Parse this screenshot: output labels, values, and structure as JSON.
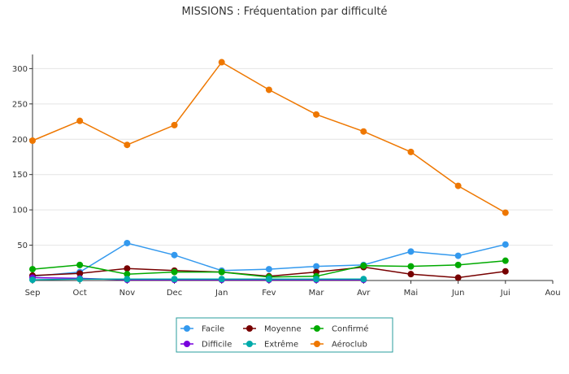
{
  "chart_data": {
    "type": "line",
    "title": "MISSIONS : Fréquentation par difficulté",
    "xlabel": "",
    "ylabel": "",
    "categories": [
      "Sep",
      "Oct",
      "Nov",
      "Dec",
      "Jan",
      "Fev",
      "Mar",
      "Avr",
      "Mai",
      "Jun",
      "Jui",
      "Aou"
    ],
    "ylim": [
      0,
      320
    ],
    "yticks": [
      50,
      100,
      150,
      200,
      250,
      300
    ],
    "grid": true,
    "legend_position": "bottom",
    "series": [
      {
        "name": "Facile",
        "color": "#3399ee",
        "values": [
          6,
          12,
          53,
          36,
          14,
          16,
          20,
          22,
          41,
          35,
          51,
          null
        ]
      },
      {
        "name": "Moyenne",
        "color": "#770000",
        "values": [
          7,
          10,
          17,
          14,
          12,
          6,
          12,
          19,
          9,
          4,
          13,
          null
        ]
      },
      {
        "name": "Confirmé",
        "color": "#00aa00",
        "values": [
          16,
          22,
          9,
          12,
          12,
          5,
          6,
          21,
          20,
          22,
          28,
          null
        ]
      },
      {
        "name": "Difficile",
        "color": "#7700dd",
        "values": [
          4,
          3,
          1,
          1,
          1,
          1,
          1,
          1,
          null,
          null,
          null,
          null
        ]
      },
      {
        "name": "Extrême",
        "color": "#00aaaa",
        "values": [
          1,
          2,
          2,
          2,
          2,
          2,
          2,
          2,
          null,
          null,
          null,
          null
        ]
      },
      {
        "name": "Aéroclub",
        "color": "#ee7700",
        "values": [
          198,
          226,
          192,
          220,
          309,
          270,
          235,
          211,
          182,
          134,
          96,
          null
        ]
      }
    ]
  }
}
